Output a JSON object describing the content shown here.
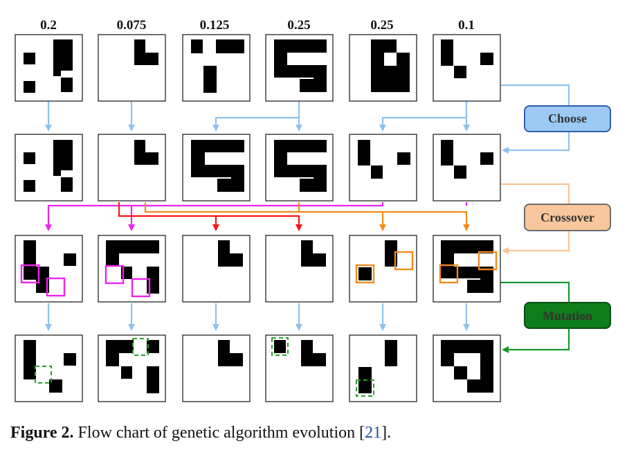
{
  "fitness_values": [
    "0.2",
    "0.075",
    "0.125",
    "0.25",
    "0.25",
    "0.1"
  ],
  "steps": {
    "choose": "Choose",
    "crossover": "Crossover",
    "mutation": "Mutation"
  },
  "colors": {
    "choose_fill": "#9ccaf4",
    "choose_stroke": "#2d5ea8",
    "choose_arrow": "#8fc1ef",
    "crossover_fill": "#f9c79d",
    "crossover_stroke": "#6b6b6b",
    "crossover_arrow": "#f7c595",
    "mutation_fill": "#0f7d1a",
    "mutation_stroke": "#0a4d10",
    "mutation_arrow": "#159a2c",
    "magenta": "#ee22ee",
    "red": "#ff1111",
    "orange": "#f28a1c",
    "green_dashed": "#2ca02c"
  },
  "caption": {
    "label": "Figure 2.",
    "text": " Flow chart of genetic algorithm evolution [",
    "ref": "21",
    "end": "]."
  }
}
